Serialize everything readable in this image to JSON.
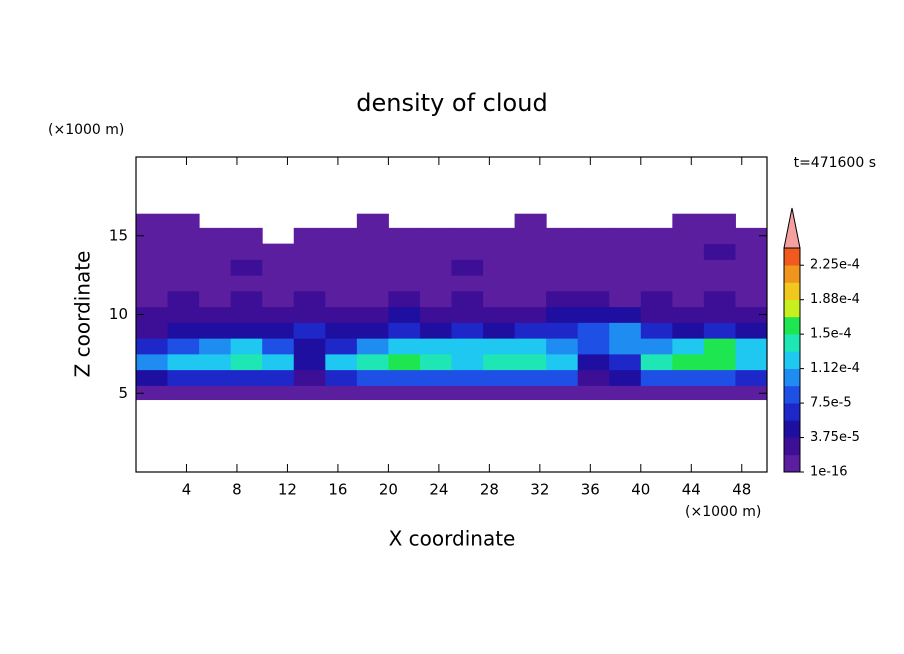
{
  "chart_data": {
    "type": "contour",
    "title": "density of cloud",
    "xlabel": "X coordinate",
    "ylabel": "Z coordinate",
    "xunit": "(×1000 m)",
    "yunit": "(×1000 m)",
    "time_label": "t=471600 s",
    "xlim": [
      0,
      50
    ],
    "ylim": [
      0,
      20
    ],
    "xticks": [
      4,
      8,
      12,
      16,
      20,
      24,
      28,
      32,
      36,
      40,
      44,
      48
    ],
    "yticks": [
      5,
      10,
      15
    ],
    "x_edges": [
      0,
      2.5,
      5,
      7.5,
      10,
      12.5,
      15,
      17.5,
      20,
      22.5,
      25,
      27.5,
      30,
      32.5,
      35,
      37.5,
      40,
      42.5,
      45,
      47.5,
      50
    ],
    "y_edges": [
      4.6,
      5.5,
      6.5,
      7.5,
      8.5,
      9.5,
      10.5,
      11.5,
      12.5,
      13.5,
      14.5,
      15.5,
      16.4
    ],
    "field": [
      [
        1e-05,
        1e-05,
        1e-05,
        1e-05,
        1e-05,
        1e-05,
        1e-05,
        1e-05,
        1e-05,
        1e-05,
        1e-05,
        1e-05,
        1e-05,
        1e-05,
        1e-05,
        1e-05,
        1e-05,
        1e-05,
        1e-05,
        1e-05
      ],
      [
        4e-05,
        6e-05,
        7e-05,
        7e-05,
        6e-05,
        3e-05,
        6e-05,
        8e-05,
        9e-05,
        9e-05,
        8e-05,
        9e-05,
        9e-05,
        8e-05,
        3e-05,
        4e-05,
        8e-05,
        9e-05,
        8e-05,
        6e-05
      ],
      [
        0.00011,
        0.00012,
        0.00013,
        0.00014,
        0.00012,
        4e-05,
        0.00012,
        0.00014,
        0.00015,
        0.00014,
        0.00013,
        0.00014,
        0.00014,
        0.00013,
        5e-05,
        6e-05,
        0.00014,
        0.00015,
        0.00016,
        0.00013
      ],
      [
        7e-05,
        9e-05,
        0.00011,
        0.00012,
        9e-05,
        5e-05,
        7e-05,
        0.00011,
        0.00012,
        0.00013,
        0.00013,
        0.00012,
        0.00013,
        0.0001,
        8e-05,
        0.0001,
        0.00011,
        0.00013,
        0.00015,
        0.00012
      ],
      [
        3e-05,
        4e-05,
        5e-05,
        4e-05,
        5e-05,
        7e-05,
        4e-05,
        5e-05,
        6e-05,
        5e-05,
        6e-05,
        5e-05,
        6e-05,
        6e-05,
        9e-05,
        0.0001,
        6e-05,
        5e-05,
        6e-05,
        5e-05
      ],
      [
        2e-05,
        3e-05,
        2e-05,
        3e-05,
        2e-05,
        3e-05,
        2e-05,
        3e-05,
        4e-05,
        3e-05,
        2e-05,
        3e-05,
        3e-05,
        4e-05,
        5e-05,
        4e-05,
        3e-05,
        2e-05,
        3e-05,
        3e-05
      ],
      [
        1e-05,
        2e-05,
        1e-05,
        2e-05,
        1e-05,
        2e-05,
        1e-05,
        1e-05,
        2e-05,
        1e-05,
        2e-05,
        1e-05,
        1e-05,
        2e-05,
        2e-05,
        1e-05,
        2e-05,
        1e-05,
        2e-05,
        1e-05
      ],
      [
        1e-05,
        1e-05,
        1e-05,
        1e-05,
        1e-05,
        1e-05,
        1e-05,
        1e-05,
        1e-05,
        1e-05,
        1e-05,
        1e-05,
        1e-05,
        1e-05,
        1e-05,
        1e-05,
        1e-05,
        1e-05,
        1e-05,
        1e-05
      ],
      [
        1e-05,
        1e-05,
        1e-05,
        2e-05,
        1e-05,
        1e-05,
        1e-05,
        1e-05,
        1e-05,
        1e-05,
        2e-05,
        1e-05,
        1e-05,
        1e-05,
        1e-05,
        1e-05,
        1e-05,
        1e-05,
        1e-05,
        1e-05
      ],
      [
        1e-05,
        1e-05,
        1e-05,
        1e-05,
        1e-05,
        1e-05,
        1e-05,
        1e-05,
        1e-05,
        1e-05,
        1e-05,
        1e-05,
        1e-05,
        1e-05,
        1e-05,
        1e-05,
        1e-05,
        1e-05,
        2e-05,
        1e-05
      ],
      [
        1e-05,
        1e-05,
        1e-05,
        1e-05,
        null,
        1e-05,
        1e-05,
        1e-05,
        1e-05,
        1e-05,
        1e-05,
        1e-05,
        1e-05,
        1e-05,
        1e-05,
        1e-05,
        1e-05,
        1e-05,
        1e-05,
        1e-05
      ],
      [
        1e-05,
        1e-05,
        null,
        null,
        null,
        null,
        null,
        1e-05,
        null,
        null,
        null,
        null,
        1e-05,
        null,
        null,
        null,
        null,
        1e-05,
        1e-05,
        null
      ]
    ],
    "levels": [
      1e-16,
      1.875e-05,
      3.75e-05,
      5.625e-05,
      7.5e-05,
      9.375e-05,
      0.0001125,
      0.00013125,
      0.00015,
      0.00016875,
      0.0001875,
      0.00020625,
      0.000225,
      0.00024375
    ],
    "colors": [
      "#5a1e9e",
      "#3c0f96",
      "#1e0fa0",
      "#1e28c8",
      "#1e50e6",
      "#1e8cf0",
      "#1ec8f0",
      "#1ee6b4",
      "#1ee650",
      "#c8f01e",
      "#f0c81e",
      "#f0961e",
      "#f05a1e"
    ],
    "extend_color": "#f4a0a0",
    "colorbar_ticks": [
      {
        "value": 1e-16,
        "label": "1e-16"
      },
      {
        "value": 3.75e-05,
        "label": "3.75e-5"
      },
      {
        "value": 7.5e-05,
        "label": "7.5e-5"
      },
      {
        "value": 0.0001125,
        "label": "1.12e-4"
      },
      {
        "value": 0.00015,
        "label": "1.5e-4"
      },
      {
        "value": 0.0001875,
        "label": "1.88e-4"
      },
      {
        "value": 0.000225,
        "label": "2.25e-4"
      }
    ]
  }
}
